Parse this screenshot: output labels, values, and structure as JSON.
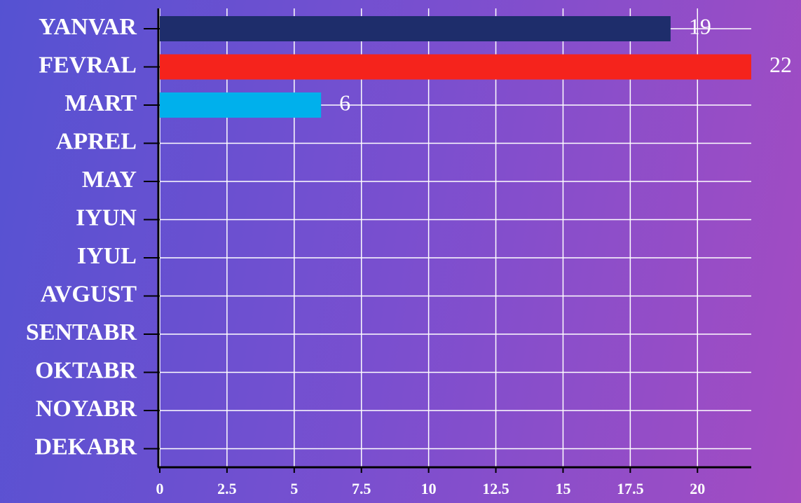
{
  "chart_data": {
    "type": "bar",
    "orientation": "horizontal",
    "categories": [
      "YANVAR",
      "FEVRAL",
      "MART",
      "APREL",
      "MAY",
      "IYUN",
      "IYUL",
      "AVGUST",
      "SENTABR",
      "OKTABR",
      "NOYABR",
      "DEKABR"
    ],
    "values": [
      19,
      22,
      6,
      null,
      null,
      null,
      null,
      null,
      null,
      null,
      null,
      null
    ],
    "colors": [
      "#1e2d6b",
      "#f5231c",
      "#00b0ec"
    ],
    "xlim": [
      0,
      22
    ],
    "xticks": [
      0,
      2.5,
      5,
      7.5,
      10,
      12.5,
      15,
      17.5,
      20
    ],
    "grid": true
  }
}
